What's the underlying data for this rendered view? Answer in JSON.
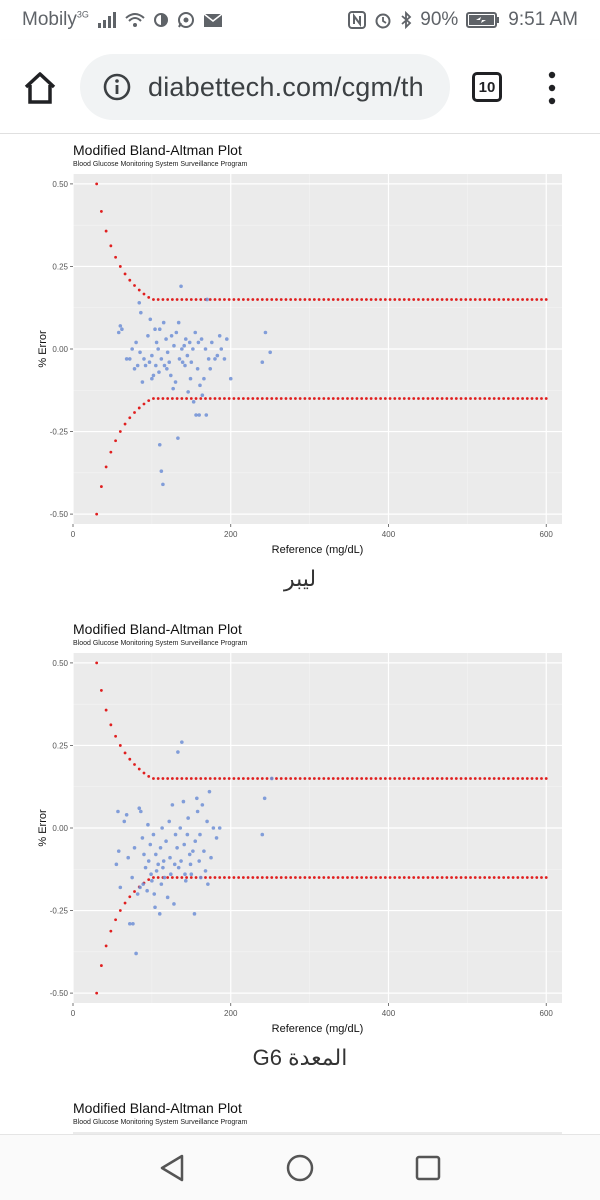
{
  "status_bar": {
    "carrier": "Mobily",
    "network": "3G",
    "battery": "90%",
    "time": "9:51 AM"
  },
  "browser": {
    "url": "diabettech.com/cgm/th",
    "tab_count": "10"
  },
  "plots": [
    {
      "title": "Modified Bland-Altman Plot",
      "subtitle": "Blood Glucose Monitoring System Surveillance Program",
      "caption": "ليبر",
      "chart_data": {
        "type": "scatter",
        "xlabel": "Reference (mg/dL)",
        "ylabel": "% Error",
        "xlim": [
          0,
          620
        ],
        "ylim": [
          -0.53,
          0.53
        ],
        "xticks": [
          0,
          200,
          400,
          600
        ],
        "yticks": [
          -0.5,
          -0.25,
          0.0,
          0.25,
          0.5
        ],
        "ytick_labels": [
          "-0.50",
          "-0.25",
          "0.00",
          "0.25",
          "0.50"
        ],
        "grid": true,
        "point_color": "#6f8fd6",
        "boundary_color": "#e01f1f",
        "boundary": {
          "threshold_mgdl": 100,
          "limit_pct": 0.15,
          "abs_limit_mgdl": 15,
          "x_start": 30,
          "x_end": 600
        },
        "points": [
          [
            58,
            0.05
          ],
          [
            60,
            0.07
          ],
          [
            62,
            0.06
          ],
          [
            68,
            -0.03
          ],
          [
            72,
            -0.03
          ],
          [
            75,
            0.0
          ],
          [
            78,
            -0.06
          ],
          [
            80,
            0.02
          ],
          [
            82,
            -0.05
          ],
          [
            84,
            0.14
          ],
          [
            85,
            -0.01
          ],
          [
            86,
            0.11
          ],
          [
            88,
            -0.1
          ],
          [
            90,
            -0.03
          ],
          [
            92,
            -0.05
          ],
          [
            95,
            0.04
          ],
          [
            97,
            -0.04
          ],
          [
            98,
            0.09
          ],
          [
            100,
            -0.09
          ],
          [
            100,
            -0.02
          ],
          [
            102,
            -0.08
          ],
          [
            104,
            0.06
          ],
          [
            105,
            -0.05
          ],
          [
            106,
            0.02
          ],
          [
            108,
            0.0
          ],
          [
            109,
            -0.07
          ],
          [
            110,
            -0.29
          ],
          [
            110,
            0.06
          ],
          [
            112,
            -0.03
          ],
          [
            112,
            -0.37
          ],
          [
            114,
            -0.41
          ],
          [
            115,
            0.08
          ],
          [
            116,
            -0.05
          ],
          [
            118,
            0.03
          ],
          [
            119,
            -0.06
          ],
          [
            120,
            -0.01
          ],
          [
            122,
            -0.04
          ],
          [
            124,
            -0.08
          ],
          [
            125,
            0.04
          ],
          [
            127,
            -0.12
          ],
          [
            128,
            0.01
          ],
          [
            130,
            -0.1
          ],
          [
            131,
            0.05
          ],
          [
            133,
            -0.27
          ],
          [
            134,
            0.08
          ],
          [
            135,
            -0.03
          ],
          [
            137,
            0.19
          ],
          [
            138,
            0.0
          ],
          [
            139,
            -0.04
          ],
          [
            141,
            0.01
          ],
          [
            142,
            -0.05
          ],
          [
            143,
            0.03
          ],
          [
            145,
            -0.02
          ],
          [
            146,
            -0.13
          ],
          [
            148,
            0.02
          ],
          [
            149,
            -0.09
          ],
          [
            150,
            -0.04
          ],
          [
            152,
            0.0
          ],
          [
            153,
            -0.16
          ],
          [
            155,
            0.05
          ],
          [
            156,
            -0.2
          ],
          [
            158,
            -0.06
          ],
          [
            159,
            0.02
          ],
          [
            160,
            -0.2
          ],
          [
            161,
            -0.11
          ],
          [
            163,
            0.03
          ],
          [
            164,
            -0.14
          ],
          [
            166,
            -0.09
          ],
          [
            168,
            0.0
          ],
          [
            169,
            -0.2
          ],
          [
            170,
            0.15
          ],
          [
            172,
            -0.03
          ],
          [
            174,
            -0.06
          ],
          [
            176,
            0.02
          ],
          [
            180,
            -0.03
          ],
          [
            183,
            -0.02
          ],
          [
            186,
            0.04
          ],
          [
            188,
            0.0
          ],
          [
            192,
            -0.03
          ],
          [
            195,
            0.03
          ],
          [
            200,
            -0.09
          ],
          [
            240,
            -0.04
          ],
          [
            244,
            0.05
          ],
          [
            250,
            -0.01
          ]
        ]
      }
    },
    {
      "title": "Modified Bland-Altman Plot",
      "subtitle": "Blood Glucose Monitoring System Surveillance Program",
      "caption": "G6 المعدة",
      "chart_data": {
        "type": "scatter",
        "xlabel": "Reference (mg/dL)",
        "ylabel": "% Error",
        "xlim": [
          0,
          620
        ],
        "ylim": [
          -0.53,
          0.53
        ],
        "xticks": [
          0,
          200,
          400,
          600
        ],
        "yticks": [
          -0.5,
          -0.25,
          0.0,
          0.25,
          0.5
        ],
        "ytick_labels": [
          "-0.50",
          "-0.25",
          "0.00",
          "0.25",
          "0.50"
        ],
        "grid": true,
        "point_color": "#6f8fd6",
        "boundary_color": "#e01f1f",
        "boundary": {
          "threshold_mgdl": 100,
          "limit_pct": 0.15,
          "abs_limit_mgdl": 15,
          "x_start": 30,
          "x_end": 600
        },
        "points": [
          [
            55,
            -0.11
          ],
          [
            57,
            0.05
          ],
          [
            58,
            -0.07
          ],
          [
            60,
            -0.18
          ],
          [
            65,
            0.02
          ],
          [
            68,
            0.04
          ],
          [
            70,
            -0.09
          ],
          [
            72,
            -0.29
          ],
          [
            75,
            -0.15
          ],
          [
            76,
            -0.29
          ],
          [
            78,
            -0.06
          ],
          [
            80,
            -0.38
          ],
          [
            82,
            -0.2
          ],
          [
            84,
            0.06
          ],
          [
            85,
            -0.18
          ],
          [
            86,
            0.05
          ],
          [
            88,
            -0.03
          ],
          [
            89,
            -0.17
          ],
          [
            90,
            -0.08
          ],
          [
            92,
            -0.12
          ],
          [
            94,
            -0.19
          ],
          [
            95,
            0.01
          ],
          [
            96,
            -0.1
          ],
          [
            98,
            -0.05
          ],
          [
            99,
            -0.14
          ],
          [
            100,
            -0.16
          ],
          [
            102,
            -0.02
          ],
          [
            103,
            -0.2
          ],
          [
            104,
            -0.24
          ],
          [
            105,
            -0.08
          ],
          [
            106,
            -0.13
          ],
          [
            108,
            -0.11
          ],
          [
            110,
            -0.26
          ],
          [
            111,
            -0.06
          ],
          [
            112,
            -0.17
          ],
          [
            113,
            0.0
          ],
          [
            114,
            -0.12
          ],
          [
            115,
            -0.1
          ],
          [
            116,
            -0.15
          ],
          [
            118,
            -0.04
          ],
          [
            120,
            -0.21
          ],
          [
            122,
            0.02
          ],
          [
            123,
            -0.09
          ],
          [
            124,
            -0.14
          ],
          [
            126,
            0.07
          ],
          [
            128,
            -0.23
          ],
          [
            129,
            -0.11
          ],
          [
            130,
            -0.02
          ],
          [
            132,
            -0.06
          ],
          [
            133,
            0.23
          ],
          [
            134,
            -0.12
          ],
          [
            136,
            0.0
          ],
          [
            137,
            -0.1
          ],
          [
            138,
            0.26
          ],
          [
            140,
            0.08
          ],
          [
            141,
            -0.05
          ],
          [
            142,
            -0.14
          ],
          [
            143,
            -0.16
          ],
          [
            145,
            -0.02
          ],
          [
            146,
            0.03
          ],
          [
            148,
            -0.08
          ],
          [
            149,
            -0.11
          ],
          [
            150,
            -0.14
          ],
          [
            152,
            -0.07
          ],
          [
            154,
            -0.26
          ],
          [
            155,
            -0.04
          ],
          [
            157,
            0.09
          ],
          [
            158,
            0.05
          ],
          [
            160,
            -0.1
          ],
          [
            161,
            -0.02
          ],
          [
            162,
            -0.15
          ],
          [
            164,
            0.07
          ],
          [
            166,
            -0.07
          ],
          [
            168,
            -0.13
          ],
          [
            170,
            0.02
          ],
          [
            171,
            -0.17
          ],
          [
            173,
            0.11
          ],
          [
            175,
            -0.09
          ],
          [
            178,
            0.0
          ],
          [
            182,
            -0.03
          ],
          [
            186,
            0.0
          ],
          [
            240,
            -0.02
          ],
          [
            243,
            0.09
          ],
          [
            252,
            0.15
          ]
        ]
      }
    },
    {
      "title": "Modified Bland-Altman Plot",
      "subtitle": "Blood Glucose Monitoring System Surveillance Program"
    }
  ]
}
